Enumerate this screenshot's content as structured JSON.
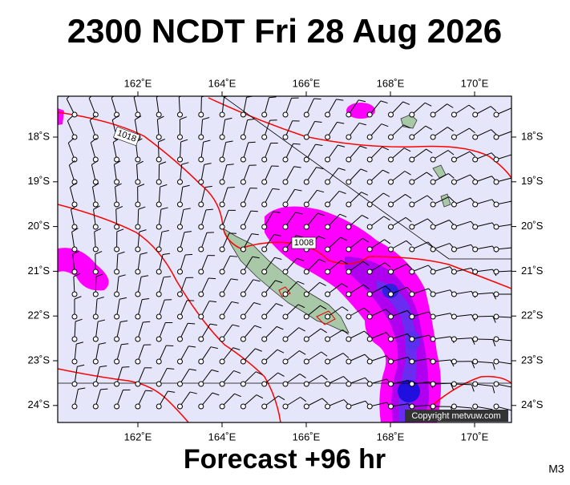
{
  "title": "2300 NCDT Fri 28 Aug 2026",
  "lon_labels": [
    "162˚E",
    "164˚E",
    "166˚E",
    "168˚E",
    "170˚E"
  ],
  "lat_labels": [
    "18˚S",
    "19˚S",
    "20˚S",
    "21˚S",
    "22˚S",
    "23˚S",
    "24˚S"
  ],
  "isobar_labels": [
    "1018",
    "1008"
  ],
  "copyright": "Copyright metvuw.com",
  "footer": "Forecast +96 hr",
  "code": "M3"
}
